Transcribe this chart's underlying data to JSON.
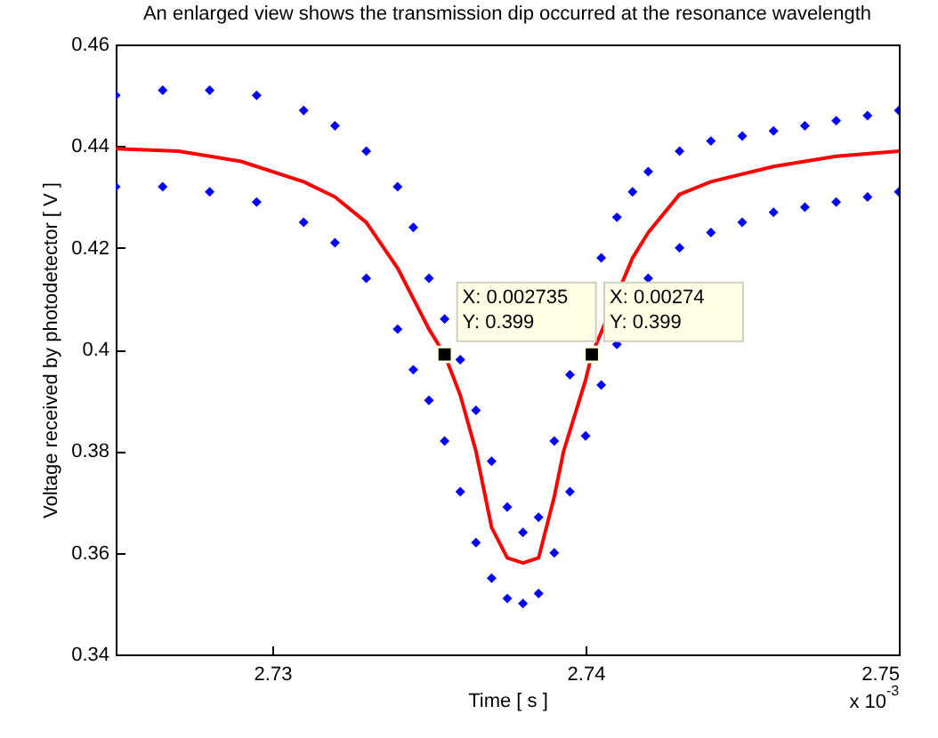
{
  "chart_data": {
    "type": "scatter",
    "title": "An enlarged view shows the transmission dip occurred at the resonance wavelength",
    "xlabel": "Time [ s ]",
    "ylabel": "Voltage received by photodetector [ V ]",
    "xlim": [
      2.725,
      2.75
    ],
    "xticks": [
      2.73,
      2.74,
      2.75
    ],
    "ylim": [
      0.34,
      0.46
    ],
    "yticks": [
      0.34,
      0.36,
      0.38,
      0.4,
      0.42,
      0.44,
      0.46
    ],
    "series": [
      {
        "color": "#0000ff",
        "marker": "diamond",
        "x": [
          2.725,
          2.7265,
          2.728,
          2.7295,
          2.731,
          2.732,
          2.733,
          2.734,
          2.7345,
          2.735,
          2.7355,
          2.736,
          2.7365,
          2.737,
          2.7375,
          2.738,
          2.7385,
          2.739,
          2.7395,
          2.7405,
          2.741,
          2.7415,
          2.742,
          2.743,
          2.744,
          2.745,
          2.746,
          2.747,
          2.748,
          2.749,
          2.75,
          2.725,
          2.7265,
          2.728,
          2.7295,
          2.731,
          2.732,
          2.733,
          2.734,
          2.7345,
          2.735,
          2.7355,
          2.736,
          2.7365,
          2.737,
          2.7375,
          2.738,
          2.7385,
          2.739,
          2.7395,
          2.74,
          2.7405,
          2.741,
          2.742,
          2.743,
          2.744,
          2.745,
          2.746,
          2.747,
          2.748,
          2.749,
          2.75
        ],
        "values": [
          0.45,
          0.451,
          0.451,
          0.45,
          0.447,
          0.444,
          0.439,
          0.432,
          0.424,
          0.414,
          0.406,
          0.398,
          0.388,
          0.378,
          0.369,
          0.364,
          0.367,
          0.382,
          0.395,
          0.418,
          0.426,
          0.431,
          0.435,
          0.439,
          0.441,
          0.442,
          0.443,
          0.444,
          0.445,
          0.446,
          0.447,
          0.432,
          0.432,
          0.431,
          0.429,
          0.425,
          0.421,
          0.414,
          0.404,
          0.396,
          0.39,
          0.382,
          0.372,
          0.362,
          0.355,
          0.351,
          0.35,
          0.352,
          0.36,
          0.372,
          0.383,
          0.393,
          0.401,
          0.414,
          0.42,
          0.423,
          0.425,
          0.427,
          0.428,
          0.429,
          0.43,
          0.431
        ]
      },
      {
        "type": "line",
        "color": "#ff0000",
        "x": [
          2.725,
          2.727,
          2.729,
          2.731,
          2.732,
          2.733,
          2.734,
          2.735,
          2.7355,
          2.736,
          2.7365,
          2.737,
          2.7375,
          2.738,
          2.7385,
          2.739,
          2.7393,
          2.74,
          2.7402,
          2.7415,
          2.742,
          2.743,
          2.744,
          2.746,
          2.748,
          2.75
        ],
        "values": [
          0.4395,
          0.439,
          0.437,
          0.433,
          0.43,
          0.425,
          0.416,
          0.404,
          0.399,
          0.391,
          0.38,
          0.365,
          0.359,
          0.358,
          0.359,
          0.371,
          0.38,
          0.394,
          0.399,
          0.418,
          0.423,
          0.4305,
          0.433,
          0.436,
          0.438,
          0.439
        ]
      }
    ],
    "annotations": [
      {
        "text": "X: 0.002735\nY: 0.399",
        "x": 2.7355,
        "y": 0.399
      },
      {
        "text": "X: 0.00274\nY: 0.399",
        "x": 2.7402,
        "y": 0.399
      },
      "x 10$^{-3}$"
    ]
  }
}
